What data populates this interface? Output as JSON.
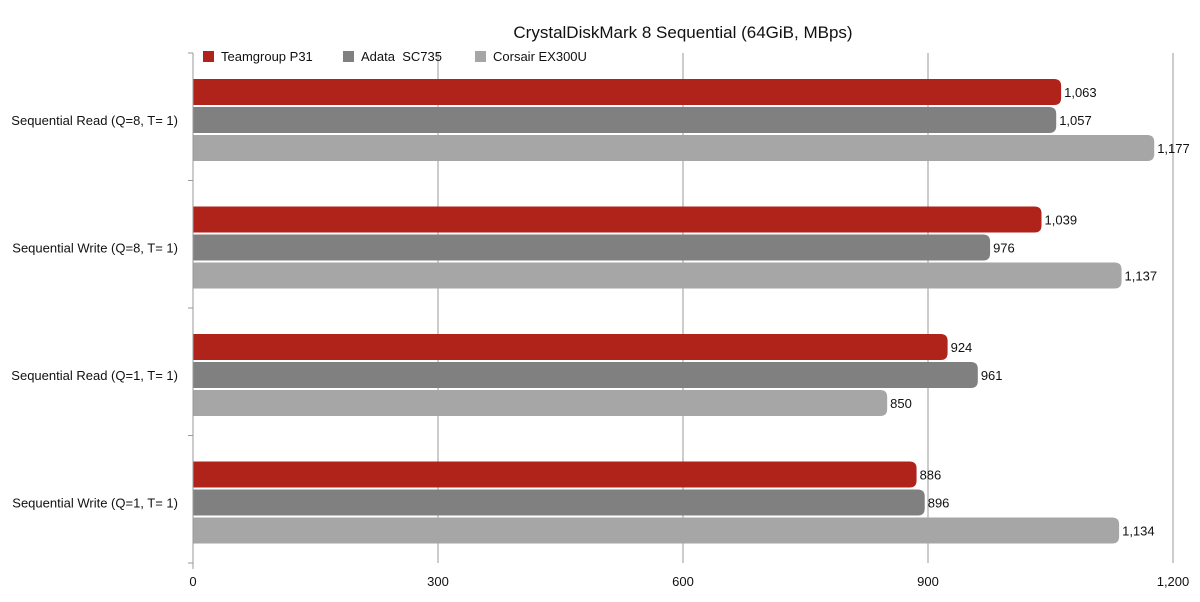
{
  "chart_data": {
    "type": "bar",
    "orientation": "horizontal",
    "title": "CrystalDiskMark 8 Sequential (64GiB, MBps)",
    "xlabel": "",
    "ylabel": "",
    "categories": [
      "Sequential Read (Q=8, T= 1)",
      "Sequential Write (Q=8, T= 1)",
      "Sequential Read (Q=1, T= 1)",
      "Sequential Write (Q=1, T= 1)"
    ],
    "series": [
      {
        "name": "Teamgroup P31",
        "color": "#b0231b",
        "values": [
          1063,
          1039,
          924,
          886
        ],
        "labels": [
          "1,063",
          "1,039",
          "924",
          "886"
        ]
      },
      {
        "name": "Adata  SC735",
        "color": "#808080",
        "values": [
          1057,
          976,
          961,
          896
        ],
        "labels": [
          "1,057",
          "976",
          "961",
          "896"
        ]
      },
      {
        "name": "Corsair EX300U",
        "color": "#a6a6a6",
        "values": [
          1177,
          1137,
          850,
          1134
        ],
        "labels": [
          "1,177",
          "1,137",
          "850",
          "1,134"
        ]
      }
    ],
    "xlim": [
      0,
      1200
    ],
    "xticks": [
      0,
      300,
      600,
      900,
      1200
    ],
    "xtick_labels": [
      "0",
      "300",
      "600",
      "900",
      "1,200"
    ],
    "grid": true,
    "legend_position": "top-left"
  }
}
